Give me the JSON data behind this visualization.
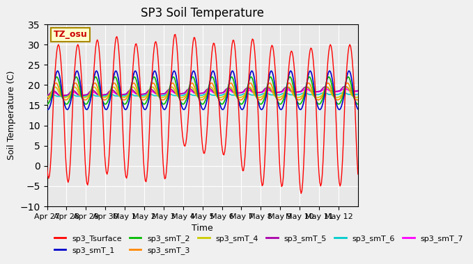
{
  "title": "SP3 Soil Temperature",
  "ylabel": "Soil Temperature (C)",
  "xlabel": "Time",
  "tz_label": "TZ_osu",
  "ylim": [
    -10,
    35
  ],
  "background_color": "#f0f0f0",
  "plot_bg_color": "#e8e8e8",
  "x_tick_labels": [
    "Apr 27",
    "Apr 28",
    "Apr 29",
    "Apr 30",
    "May 1",
    "May 2",
    "May 3",
    "May 4",
    "May 5",
    "May 6",
    "May 7",
    "May 8",
    "May 9",
    "May 10",
    "May 11",
    "May 12"
  ],
  "legend_entries": [
    {
      "label": "sp3_Tsurface",
      "color": "#ff0000"
    },
    {
      "label": "sp3_smT_1",
      "color": "#0000cc"
    },
    {
      "label": "sp3_smT_2",
      "color": "#00bb00"
    },
    {
      "label": "sp3_smT_3",
      "color": "#ff8800"
    },
    {
      "label": "sp3_smT_4",
      "color": "#cccc00"
    },
    {
      "label": "sp3_smT_5",
      "color": "#aa00aa"
    },
    {
      "label": "sp3_smT_6",
      "color": "#00cccc"
    },
    {
      "label": "sp3_smT_7",
      "color": "#ff00ff"
    }
  ],
  "num_days": 16,
  "hours_per_day": 24,
  "peaks": [
    30,
    30,
    30,
    32,
    32,
    29,
    32,
    33,
    31,
    30,
    32,
    31,
    29,
    28,
    30,
    30
  ],
  "troughs": [
    -3,
    -4,
    -5,
    -2,
    -3,
    -4,
    -4,
    5,
    3,
    3,
    -1,
    -5,
    -5,
    -7,
    -5,
    -5
  ]
}
